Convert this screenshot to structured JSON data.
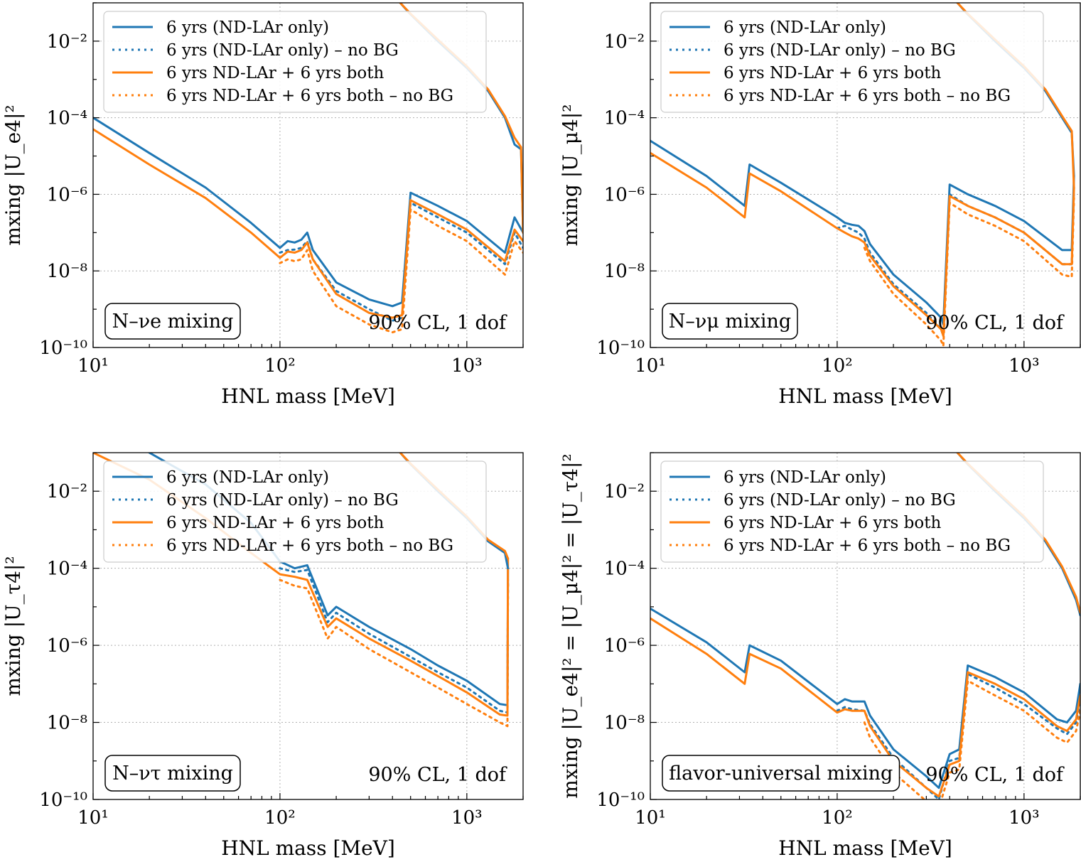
{
  "figure": {
    "colors": {
      "blue": "#1f77b4",
      "orange": "#ff7f0e"
    },
    "legend_placement": "top-left",
    "grid": true
  },
  "chart_data": [
    {
      "type": "line",
      "panel": "top-left",
      "xscale": "log",
      "yscale": "log",
      "xlim": [
        10,
        2000
      ],
      "ylim": [
        1e-10,
        0.1
      ],
      "xlabel": "HNL mass [MeV]",
      "ylabel": "mxing |U_e4|²",
      "xticks": [
        "10¹",
        "10²",
        "10³"
      ],
      "yticks": [
        "10⁻¹⁰",
        "10⁻⁸",
        "10⁻⁶",
        "10⁻⁴",
        "10⁻²"
      ],
      "box_label": "N–νe mixing",
      "cl_label": "90% CL, 1 dof",
      "legend": [
        "6 yrs (ND-LAr only)",
        "6 yrs (ND-LAr only) – no BG",
        "6 yrs ND-LAr + 6 yrs both",
        "6 yrs ND-LAr + 6 yrs both – no BG"
      ],
      "series": [
        {
          "name": "6 yrs (ND-LAr only)",
          "color": "blue",
          "dash": "solid",
          "x": [
            10,
            20,
            40,
            70,
            100,
            110,
            120,
            130,
            140,
            150,
            200,
            300,
            400,
            450,
            500,
            700,
            1000,
            1600,
            1800,
            2000
          ],
          "y": [
            0.0001,
            1.2e-05,
            1.5e-06,
            1.8e-07,
            4e-08,
            6e-08,
            5.5e-08,
            6.5e-08,
            1e-07,
            3.5e-08,
            5e-09,
            1.8e-09,
            1.2e-09,
            1.5e-09,
            1.1e-06,
            5e-07,
            2e-07,
            3e-08,
            2.5e-07,
            1e-07
          ]
        },
        {
          "name": "6 yrs (ND-LAr only) – no BG",
          "color": "blue",
          "dash": "dotted",
          "x": [
            100,
            110,
            120,
            130,
            140,
            150,
            200,
            300,
            400,
            450,
            500,
            700,
            1000,
            1600,
            1800,
            2000
          ],
          "y": [
            3e-08,
            3.5e-08,
            3.6e-08,
            4e-08,
            6e-08,
            2e-08,
            3e-09,
            1e-09,
            5e-10,
            6e-10,
            6e-07,
            2.5e-07,
            1e-07,
            1.5e-08,
            1e-07,
            4e-08
          ]
        },
        {
          "name": "6 yrs ND-LAr + 6 yrs both",
          "color": "orange",
          "dash": "solid",
          "x": [
            10,
            20,
            40,
            70,
            100,
            110,
            120,
            130,
            140,
            150,
            200,
            300,
            400,
            450,
            500,
            700,
            1000,
            1600,
            1800,
            2000
          ],
          "y": [
            5e-05,
            6e-06,
            8e-07,
            1e-07,
            2.2e-08,
            3.2e-08,
            3e-08,
            3.5e-08,
            5.5e-08,
            2e-08,
            2.5e-09,
            8e-10,
            6e-10,
            7e-10,
            7e-07,
            3e-07,
            1.2e-07,
            1.8e-08,
            1.2e-07,
            6e-08
          ]
        },
        {
          "name": "6 yrs ND-LAr + 6 yrs both – no BG",
          "color": "orange",
          "dash": "dotted",
          "x": [
            100,
            110,
            120,
            130,
            140,
            150,
            200,
            300,
            400,
            450,
            500,
            700,
            1000,
            1600,
            1800,
            2000
          ],
          "y": [
            1.6e-08,
            2e-08,
            1.8e-08,
            2e-08,
            3.5e-08,
            1e-08,
            1.2e-09,
            4e-10,
            2.5e-10,
            3e-10,
            4e-07,
            1.5e-07,
            6e-08,
            8e-09,
            6e-08,
            3e-08
          ]
        },
        {
          "name": "",
          "color": "blue",
          "dash": "solid",
          "x": [
            440,
            500,
            700,
            1000,
            1300,
            1600,
            1800,
            1950,
            2000
          ],
          "y": [
            0.1,
            0.05,
            0.01,
            0.002,
            0.0005,
            0.0001,
            2e-05,
            1.5e-05,
            1e-07
          ]
        },
        {
          "name": "",
          "color": "orange",
          "dash": "solid",
          "x": [
            440,
            500,
            700,
            1000,
            1300,
            1600,
            1800,
            1950,
            2000
          ],
          "y": [
            0.1,
            0.052,
            0.011,
            0.0022,
            0.00055,
            0.00011,
            3e-05,
            1.7e-05,
            1e-07
          ]
        }
      ]
    },
    {
      "type": "line",
      "panel": "top-right",
      "xscale": "log",
      "yscale": "log",
      "xlim": [
        10,
        2000
      ],
      "ylim": [
        1e-10,
        0.1
      ],
      "xlabel": "HNL mass [MeV]",
      "ylabel": "mxing |U_μ4|²",
      "xticks": [
        "10¹",
        "10²",
        "10³"
      ],
      "yticks": [
        "10⁻¹⁰",
        "10⁻⁸",
        "10⁻⁶",
        "10⁻⁴",
        "10⁻²"
      ],
      "box_label": "N–νμ mixing",
      "cl_label": "90% CL, 1 dof",
      "legend": [
        "6 yrs (ND-LAr only)",
        "6 yrs (ND-LAr only) – no BG",
        "6 yrs ND-LAr + 6 yrs both",
        "6 yrs ND-LAr + 6 yrs both – no BG"
      ],
      "series": [
        {
          "name": "6 yrs (ND-LAr only)",
          "color": "blue",
          "dash": "solid",
          "x": [
            10,
            20,
            32,
            34,
            50,
            100,
            110,
            120,
            130,
            140,
            150,
            200,
            300,
            360,
            370,
            400,
            500,
            700,
            1000,
            1600,
            1800,
            1850
          ],
          "y": [
            2.5e-05,
            3e-06,
            5e-07,
            6e-06,
            2e-06,
            2.5e-07,
            1.8e-07,
            1.6e-07,
            1.5e-07,
            1.1e-07,
            5e-08,
            8e-09,
            1.5e-09,
            6e-10,
            4e-10,
            1.8e-06,
            1e-06,
            5e-07,
            2e-07,
            3.5e-08,
            3.5e-08,
            3e-06
          ]
        },
        {
          "name": "6 yrs (ND-LAr only) – no BG",
          "color": "blue",
          "dash": "dotted",
          "x": [
            100,
            110,
            120,
            130,
            140,
            150,
            200,
            300,
            360,
            370,
            400,
            500,
            700,
            1000,
            1600,
            1800,
            1850
          ],
          "y": [
            1.3e-07,
            1.5e-07,
            1.2e-07,
            1e-07,
            7e-08,
            3e-08,
            4.5e-09,
            8e-10,
            3e-10,
            2e-10,
            1e-06,
            5e-07,
            2.5e-07,
            1e-07,
            1.5e-08,
            1.5e-08,
            1.5e-06
          ]
        },
        {
          "name": "6 yrs ND-LAr + 6 yrs both",
          "color": "orange",
          "dash": "solid",
          "x": [
            10,
            20,
            32,
            34,
            50,
            100,
            110,
            120,
            130,
            140,
            150,
            200,
            300,
            360,
            370,
            400,
            500,
            700,
            1000,
            1600,
            1800,
            1850
          ],
          "y": [
            1.2e-05,
            1.5e-06,
            2.5e-07,
            3.5e-06,
            1.2e-06,
            1.3e-07,
            1e-07,
            8e-08,
            7e-08,
            5.5e-08,
            2.5e-08,
            4e-09,
            7e-10,
            3e-10,
            2e-10,
            9e-07,
            5e-07,
            2.5e-07,
            1e-07,
            1.5e-08,
            1.5e-08,
            1.5e-06
          ]
        },
        {
          "name": "6 yrs ND-LAr + 6 yrs both – no BG",
          "color": "orange",
          "dash": "dotted",
          "x": [
            140,
            150,
            200,
            300,
            360,
            370,
            400,
            500,
            700,
            1000,
            1600,
            1800,
            1850
          ],
          "y": [
            4e-08,
            1.8e-08,
            2.5e-09,
            4e-10,
            1.5e-10,
            1.1e-10,
            6e-07,
            3e-07,
            1.5e-07,
            6e-08,
            8e-09,
            7e-09,
            8e-07
          ]
        },
        {
          "name": "",
          "color": "blue",
          "dash": "solid",
          "x": [
            440,
            500,
            700,
            1000,
            1300,
            1600,
            1800,
            1850
          ],
          "y": [
            0.1,
            0.05,
            0.01,
            0.002,
            0.0005,
            0.0001,
            4e-05,
            3e-06
          ]
        },
        {
          "name": "",
          "color": "orange",
          "dash": "solid",
          "x": [
            440,
            500,
            700,
            1000,
            1300,
            1600,
            1800,
            1850
          ],
          "y": [
            0.1,
            0.052,
            0.011,
            0.0022,
            0.00055,
            0.00011,
            4.5e-05,
            1.5e-06
          ]
        }
      ]
    },
    {
      "type": "line",
      "panel": "bottom-left",
      "xscale": "log",
      "yscale": "log",
      "xlim": [
        10,
        2000
      ],
      "ylim": [
        1e-10,
        0.1
      ],
      "xlabel": "HNL mass [MeV]",
      "ylabel": "mxing |U_τ4|²",
      "xticks": [
        "10¹",
        "10²",
        "10³"
      ],
      "yticks": [
        "10⁻¹⁰",
        "10⁻⁸",
        "10⁻⁶",
        "10⁻⁴",
        "10⁻²"
      ],
      "box_label": "N–ντ mixing",
      "cl_label": "90% CL, 1 dof",
      "legend": [
        "6 yrs (ND-LAr only)",
        "6 yrs (ND-LAr only) – no BG",
        "6 yrs ND-LAr + 6 yrs both",
        "6 yrs ND-LAr + 6 yrs both – no BG"
      ],
      "series": [
        {
          "name": "6 yrs (ND-LAr only)",
          "color": "blue",
          "dash": "solid",
          "x": [
            20,
            40,
            70,
            100,
            120,
            140,
            180,
            200,
            300,
            500,
            700,
            1000,
            1500,
            1650,
            1660
          ],
          "y": [
            0.1,
            0.015,
            0.0015,
            0.00015,
            0.0001,
            0.00012,
            6e-06,
            1e-05,
            3e-06,
            8e-07,
            3e-07,
            1.2e-07,
            3e-08,
            2.8e-08,
            0.0001
          ]
        },
        {
          "name": "6 yrs (ND-LAr only) – no BG",
          "color": "blue",
          "dash": "dotted",
          "x": [
            100,
            120,
            140,
            180,
            200,
            300,
            500,
            700,
            1000,
            1500,
            1650,
            1660
          ],
          "y": [
            0.0001,
            8e-05,
            9e-05,
            4e-06,
            7e-06,
            2e-06,
            5e-07,
            2e-07,
            8e-08,
            2e-08,
            1.8e-08,
            5e-05
          ]
        },
        {
          "name": "6 yrs ND-LAr + 6 yrs both",
          "color": "orange",
          "dash": "solid",
          "x": [
            10,
            20,
            40,
            70,
            100,
            120,
            140,
            180,
            200,
            300,
            500,
            700,
            1000,
            1500,
            1650,
            1660
          ],
          "y": [
            0.1,
            0.02,
            0.002,
            0.00025,
            7e-05,
            6e-05,
            5e-05,
            3e-06,
            5e-06,
            1.5e-06,
            4e-07,
            1.6e-07,
            6e-08,
            1.6e-08,
            1.5e-08,
            0.00018
          ]
        },
        {
          "name": "6 yrs ND-LAr + 6 yrs both – no BG",
          "color": "orange",
          "dash": "dotted",
          "x": [
            100,
            120,
            140,
            180,
            200,
            300,
            500,
            700,
            1000,
            1500,
            1650,
            1660
          ],
          "y": [
            5e-05,
            3.5e-05,
            3e-05,
            1.5e-06,
            3e-06,
            8e-07,
            2e-07,
            8e-08,
            3e-08,
            1e-08,
            8e-09,
            5e-05
          ]
        },
        {
          "name": "",
          "color": "blue",
          "dash": "solid",
          "x": [
            440,
            500,
            700,
            1000,
            1300,
            1600,
            1660
          ],
          "y": [
            0.1,
            0.05,
            0.01,
            0.002,
            0.0005,
            0.00025,
            0.0001
          ]
        },
        {
          "name": "",
          "color": "orange",
          "dash": "solid",
          "x": [
            440,
            500,
            700,
            1000,
            1300,
            1600,
            1660
          ],
          "y": [
            0.1,
            0.052,
            0.011,
            0.0022,
            0.00055,
            0.00028,
            0.00018
          ]
        }
      ]
    },
    {
      "type": "line",
      "panel": "bottom-right",
      "xscale": "log",
      "yscale": "log",
      "xlim": [
        10,
        2000
      ],
      "ylim": [
        1e-10,
        0.1
      ],
      "xlabel": "HNL mass [MeV]",
      "ylabel": "mxing |U_e4|² = |U_μ4|² = |U_τ4|²",
      "xticks": [
        "10¹",
        "10²",
        "10³"
      ],
      "yticks": [
        "10⁻¹⁰",
        "10⁻⁸",
        "10⁻⁶",
        "10⁻⁴",
        "10⁻²"
      ],
      "box_label": "flavor-universal mixing",
      "cl_label": "90% CL, 1 dof",
      "legend": [
        "6 yrs (ND-LAr only)",
        "6 yrs (ND-LAr only) – no BG",
        "6 yrs ND-LAr + 6 yrs both",
        "6 yrs ND-LAr + 6 yrs both – no BG"
      ],
      "series": [
        {
          "name": "6 yrs (ND-LAr only)",
          "color": "blue",
          "dash": "solid",
          "x": [
            10,
            20,
            32,
            34,
            50,
            100,
            110,
            120,
            140,
            150,
            200,
            300,
            350,
            400,
            450,
            500,
            700,
            1000,
            1500,
            1700,
            1900,
            2000
          ],
          "y": [
            9e-06,
            1.2e-06,
            2e-07,
            1e-06,
            4e-07,
            3e-08,
            4e-08,
            3.5e-08,
            3.5e-08,
            1.5e-08,
            2e-09,
            4e-10,
            2e-10,
            1.5e-09,
            2e-09,
            3e-07,
            1.5e-07,
            6e-08,
            1.2e-08,
            1e-08,
            2e-08,
            1e-07
          ]
        },
        {
          "name": "6 yrs (ND-LAr only) – no BG",
          "color": "blue",
          "dash": "dotted",
          "x": [
            100,
            110,
            120,
            140,
            150,
            200,
            300,
            350,
            400,
            450,
            500,
            700,
            1000,
            1500,
            1700,
            1900,
            2000
          ],
          "y": [
            2e-08,
            2.5e-08,
            2.2e-08,
            2e-08,
            9e-09,
            1.2e-09,
            2e-10,
            1e-10,
            1e-09,
            1.2e-09,
            1.8e-07,
            8e-08,
            3e-08,
            7e-09,
            5e-09,
            1e-08,
            4e-08
          ]
        },
        {
          "name": "6 yrs ND-LAr + 6 yrs both",
          "color": "orange",
          "dash": "solid",
          "x": [
            10,
            20,
            32,
            34,
            50,
            100,
            110,
            120,
            140,
            150,
            200,
            300,
            350,
            400,
            450,
            500,
            700,
            1000,
            1500,
            1700,
            1900,
            2000
          ],
          "y": [
            5e-06,
            6e-07,
            1e-07,
            6e-07,
            2.5e-07,
            1.8e-08,
            2.2e-08,
            2e-08,
            2e-08,
            8e-09,
            1e-09,
            2e-10,
            1.2e-10,
            8e-10,
            1e-09,
            2e-07,
            1e-07,
            4e-08,
            8e-09,
            6e-09,
            1.2e-08,
            5e-08
          ]
        },
        {
          "name": "6 yrs ND-LAr + 6 yrs both – no BG",
          "color": "orange",
          "dash": "dotted",
          "x": [
            140,
            150,
            200,
            300,
            350,
            400,
            450,
            500,
            700,
            1000,
            1500,
            1700,
            1900,
            2000
          ],
          "y": [
            1e-08,
            4e-09,
            5e-10,
            9e-11,
            6e-11,
            5e-10,
            6e-10,
            1.2e-07,
            5e-08,
            2e-08,
            4e-09,
            3e-09,
            6e-09,
            2e-08
          ]
        },
        {
          "name": "",
          "color": "blue",
          "dash": "solid",
          "x": [
            440,
            500,
            700,
            1000,
            1300,
            1600,
            1900,
            2000
          ],
          "y": [
            0.1,
            0.05,
            0.01,
            0.002,
            0.0005,
            0.0001,
            1.5e-05,
            6e-06
          ]
        },
        {
          "name": "",
          "color": "orange",
          "dash": "solid",
          "x": [
            440,
            500,
            700,
            1000,
            1300,
            1600,
            1900,
            2000
          ],
          "y": [
            0.1,
            0.052,
            0.011,
            0.0022,
            0.00055,
            0.00011,
            1.8e-05,
            7e-06
          ]
        }
      ]
    }
  ]
}
